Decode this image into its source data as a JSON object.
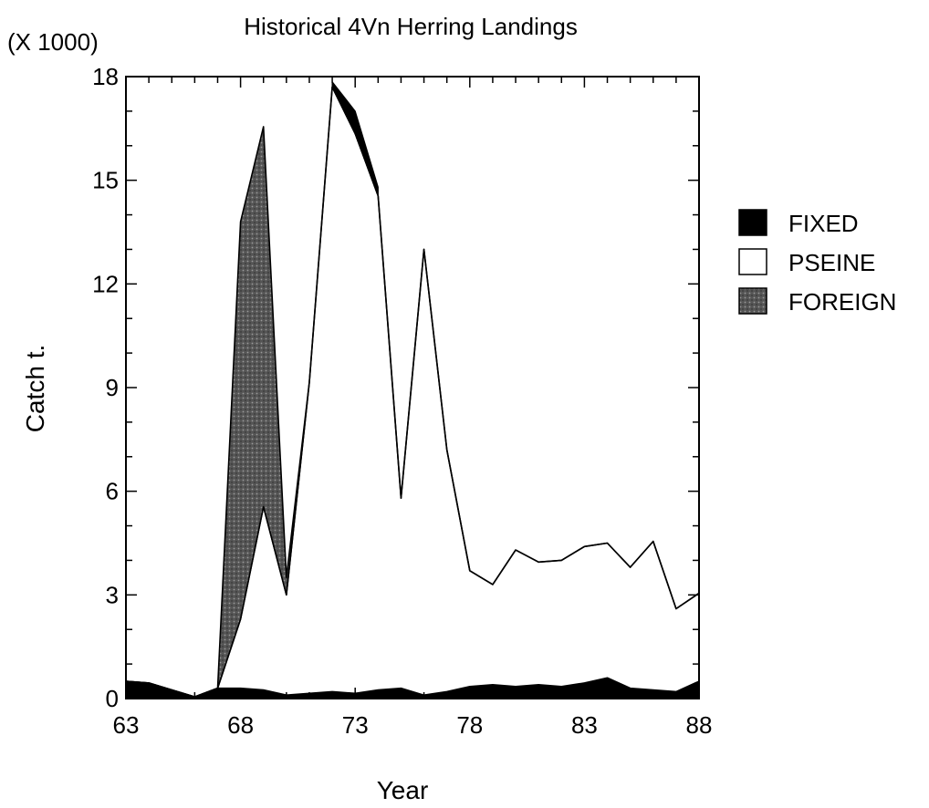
{
  "chart_data": {
    "type": "area",
    "stacked": true,
    "title": "Historical 4Vn Herring Landings",
    "multiplier_label": "(X 1000)",
    "xlabel": "Year",
    "ylabel": "Catch t.",
    "xlim": [
      63,
      88
    ],
    "ylim": [
      0,
      18
    ],
    "x_ticks": [
      63,
      68,
      73,
      78,
      83,
      88
    ],
    "y_ticks": [
      0,
      3,
      6,
      9,
      12,
      15,
      18
    ],
    "x": [
      63,
      64,
      65,
      66,
      67,
      68,
      69,
      70,
      71,
      72,
      73,
      74,
      75,
      76,
      77,
      78,
      79,
      80,
      81,
      82,
      83,
      84,
      85,
      86,
      87,
      88
    ],
    "series": [
      {
        "name": "FIXED",
        "fill": "#000000",
        "values": [
          0.5,
          0.45,
          0.25,
          0.05,
          0.3,
          0.3,
          0.25,
          0.1,
          0.15,
          0.2,
          0.15,
          0.25,
          0.3,
          0.1,
          0.2,
          0.35,
          0.4,
          0.35,
          0.4,
          0.35,
          0.45,
          0.6,
          0.3,
          0.25,
          0.2,
          0.5
        ]
      },
      {
        "name": "PSEINE",
        "fill": "#ffffff",
        "values": [
          0,
          0,
          0,
          0,
          0,
          2.0,
          5.3,
          2.9,
          9.0,
          17.5,
          16.2,
          14.3,
          5.5,
          12.9,
          7.0,
          3.35,
          2.9,
          3.95,
          3.55,
          3.65,
          3.95,
          3.9,
          3.5,
          4.3,
          2.4,
          2.55
        ]
      },
      {
        "name": "FOREIGN",
        "fill": "url(#dotpattern)",
        "values": [
          0,
          0,
          0,
          0,
          0,
          11.5,
          11.0,
          0.5,
          0,
          0,
          0,
          0,
          0,
          0,
          0,
          0,
          0,
          0,
          0,
          0,
          0,
          0,
          0,
          0,
          0,
          0
        ]
      }
    ],
    "black_edge_overlay": {
      "x": [
        72,
        73,
        74
      ],
      "values": [
        17.85,
        17.0,
        14.8
      ]
    },
    "legend": {
      "placement": "right",
      "entries": [
        "FIXED",
        "PSEINE",
        "FOREIGN"
      ]
    },
    "grid": false
  }
}
